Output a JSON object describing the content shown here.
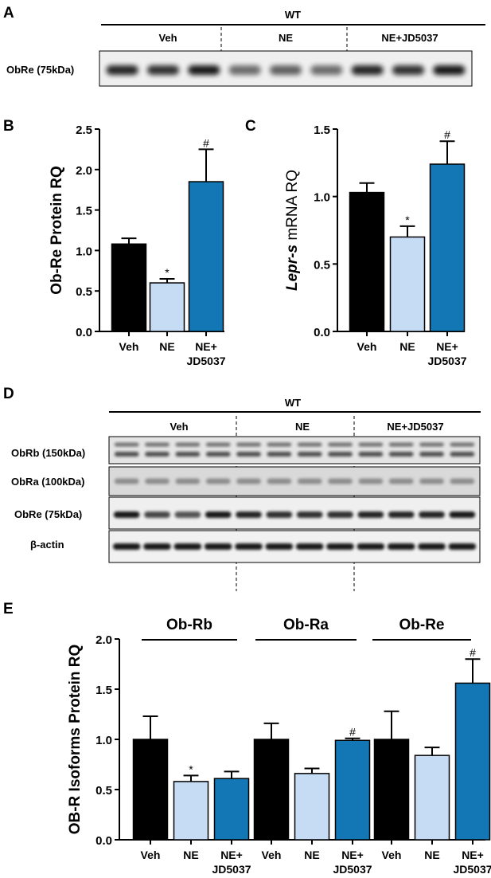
{
  "panels": {
    "A": {
      "letter": "A",
      "genotype": "WT",
      "groups": [
        "Veh",
        "NE",
        "NE+JD5037"
      ],
      "rows": [
        {
          "label": "ObRe (75kDa)"
        }
      ]
    },
    "D": {
      "letter": "D",
      "genotype": "WT",
      "groups": [
        "Veh",
        "NE",
        "NE+JD5037"
      ],
      "rows": [
        {
          "label": "ObRb (150kDa)"
        },
        {
          "label": "ObRa (100kDa)"
        },
        {
          "label": "ObRe (75kDa)"
        },
        {
          "label": "β-actin"
        }
      ]
    }
  },
  "chart_data": [
    {
      "panel": "B",
      "type": "bar",
      "ylabel": "Ob-Re Protein RQ",
      "ylim": [
        0,
        2.5
      ],
      "yticks": [
        "0.0",
        "0.5",
        "1.0",
        "1.5",
        "2.0",
        "2.5"
      ],
      "categories": [
        [
          "Veh"
        ],
        [
          "NE"
        ],
        [
          "NE+",
          "JD5037"
        ]
      ],
      "values": [
        1.08,
        0.6,
        1.85
      ],
      "errors": [
        0.07,
        0.05,
        0.4
      ],
      "annotations": [
        "",
        "*",
        "#"
      ],
      "colors": [
        "#000000",
        "#c6dcf5",
        "#1477b5"
      ]
    },
    {
      "panel": "C",
      "type": "bar",
      "ylabel_italic": "Lepr-s",
      "ylabel_rest": " mRNA RQ",
      "ylim": [
        0,
        1.5
      ],
      "yticks": [
        "0.0",
        "0.5",
        "1.0",
        "1.5"
      ],
      "categories": [
        [
          "Veh"
        ],
        [
          "NE"
        ],
        [
          "NE+",
          "JD5037"
        ]
      ],
      "values": [
        1.03,
        0.7,
        1.24
      ],
      "errors": [
        0.07,
        0.08,
        0.17
      ],
      "annotations": [
        "",
        "*",
        "#"
      ],
      "colors": [
        "#000000",
        "#c6dcf5",
        "#1477b5"
      ]
    },
    {
      "panel": "E",
      "type": "bar",
      "ylabel": "OB-R Isoforms Protein RQ",
      "ylim": [
        0,
        2.0
      ],
      "yticks": [
        "0.0",
        "0.5",
        "1.0",
        "1.5",
        "2.0"
      ],
      "groups": [
        {
          "name": "Ob-Rb",
          "values": [
            1.0,
            0.58,
            0.61
          ],
          "errors": [
            0.23,
            0.06,
            0.07
          ],
          "annotations": [
            "",
            "*",
            ""
          ]
        },
        {
          "name": "Ob-Ra",
          "values": [
            1.0,
            0.66,
            0.99
          ],
          "errors": [
            0.16,
            0.05,
            0.02
          ],
          "annotations": [
            "",
            "",
            "#"
          ]
        },
        {
          "name": "Ob-Re",
          "values": [
            1.0,
            0.84,
            1.56
          ],
          "errors": [
            0.28,
            0.08,
            0.24
          ],
          "annotations": [
            "",
            "",
            "#"
          ]
        }
      ],
      "categories": [
        [
          "Veh"
        ],
        [
          "NE"
        ],
        [
          "NE+",
          "JD5037"
        ]
      ],
      "colors": [
        "#000000",
        "#c6dcf5",
        "#1477b5"
      ]
    }
  ],
  "panel_letters": {
    "B": "B",
    "C": "C",
    "E": "E"
  }
}
